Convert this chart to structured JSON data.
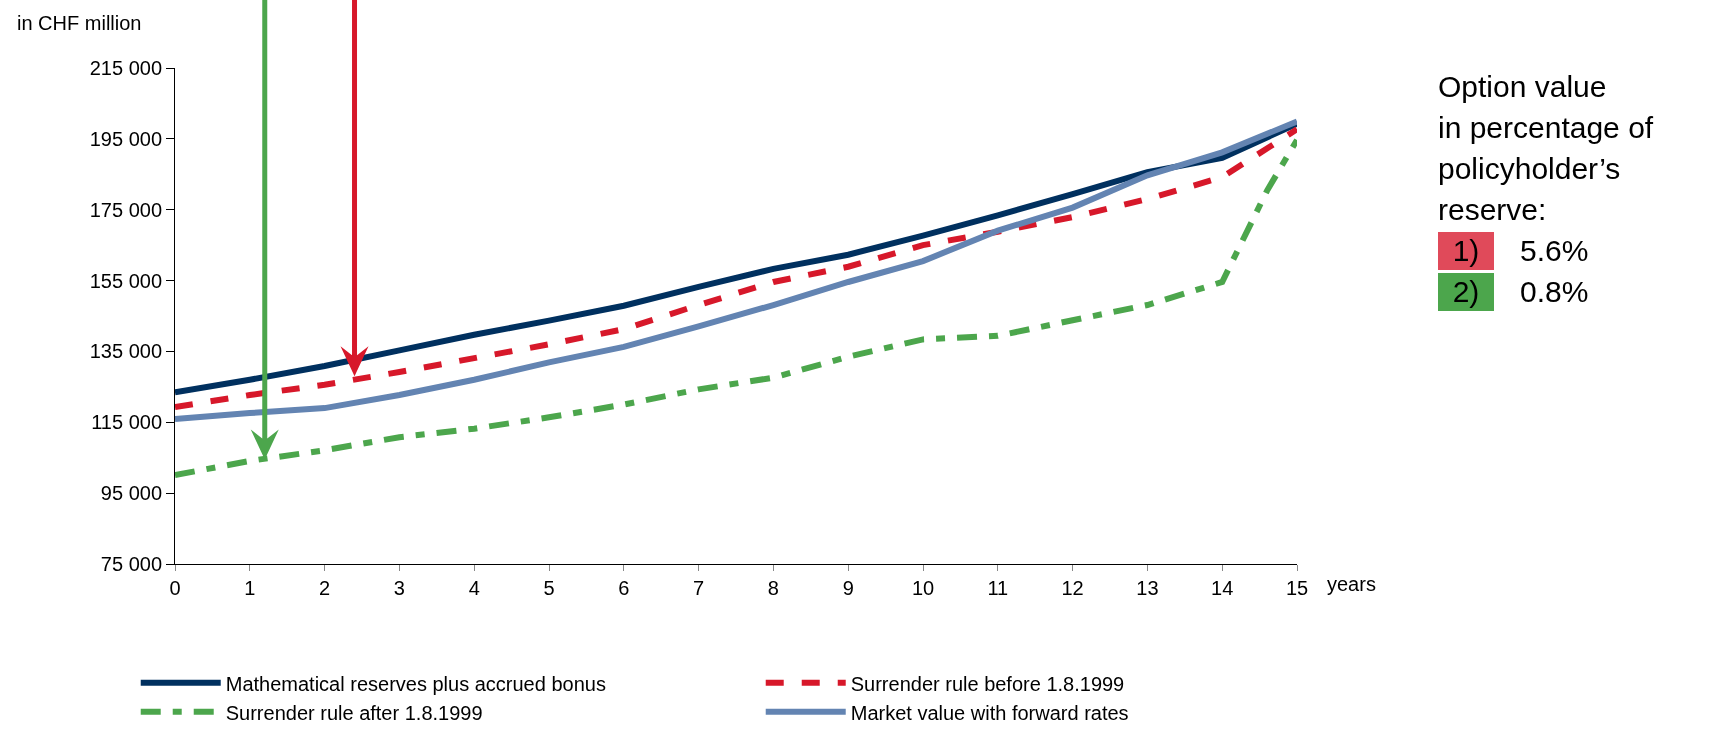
{
  "chart_data": {
    "type": "line",
    "xlabel": "years",
    "ylabel": "in CHF million",
    "x": [
      0,
      1,
      2,
      3,
      4,
      5,
      6,
      7,
      8,
      9,
      10,
      11,
      12,
      13,
      14,
      15
    ],
    "series": [
      {
        "name": "Mathematical reserves plus accrued bonus",
        "color": "#00305f",
        "line_style": "solid",
        "values": [
          123500,
          127000,
          130900,
          135300,
          139700,
          143700,
          147900,
          153200,
          158300,
          162300,
          167700,
          173400,
          179400,
          185600,
          189600,
          199300
        ]
      },
      {
        "name": "Surrender rule before 1.8.1999",
        "color": "#d7182a",
        "line_style": "dashed",
        "values": [
          119300,
          122700,
          125600,
          129200,
          133100,
          137000,
          141300,
          148100,
          154600,
          158900,
          165000,
          168800,
          172900,
          178000,
          184200,
          197700
        ]
      },
      {
        "name": "Surrender rule after 1.8.1999",
        "color": "#4ca64c",
        "line_style": "dashed",
        "x": [
          0,
          1,
          2,
          3,
          4,
          5,
          6,
          7,
          8,
          9,
          10,
          11,
          12,
          13,
          14,
          14.6,
          15
        ],
        "values": [
          100100,
          104100,
          107100,
          110800,
          113200,
          116400,
          120000,
          124300,
          127600,
          133500,
          138400,
          139400,
          143800,
          148100,
          154600,
          180400,
          194700
        ]
      },
      {
        "name": "Market value with forward rates",
        "color": "#6384b2",
        "line_style": "solid",
        "values": [
          115900,
          117600,
          119000,
          122700,
          127000,
          131900,
          136300,
          142100,
          148100,
          154600,
          160500,
          169100,
          175600,
          184700,
          191200,
          199900
        ]
      }
    ],
    "xlim": [
      0,
      15
    ],
    "xticks": [
      0,
      1,
      2,
      3,
      4,
      5,
      6,
      7,
      8,
      9,
      10,
      11,
      12,
      13,
      14,
      15
    ],
    "ylim": [
      75000,
      215000
    ],
    "yticks": [
      {
        "value": 75000,
        "label": "75 000"
      },
      {
        "value": 95000,
        "label": "95 000"
      },
      {
        "value": 115000,
        "label": "115 000"
      },
      {
        "value": 135000,
        "label": "135 000"
      },
      {
        "value": 155000,
        "label": "155 000"
      },
      {
        "value": 175000,
        "label": "175 000"
      },
      {
        "value": 195000,
        "label": "195 000"
      },
      {
        "value": 215000,
        "label": "215 000"
      }
    ],
    "grid": false,
    "legend": "bottom",
    "marker": "none",
    "annotations": [
      "Option value",
      "in percentage of",
      "policyholder’s",
      "reserve:",
      "1)",
      "5.6%",
      "2)",
      "0.8%"
    ]
  }
}
